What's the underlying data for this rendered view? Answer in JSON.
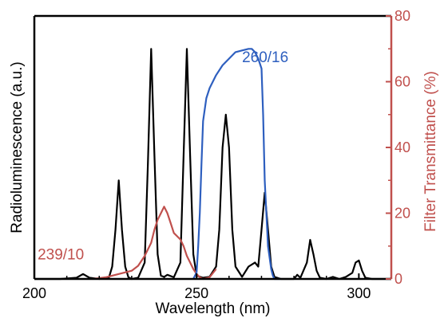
{
  "chart_data": {
    "type": "line",
    "title": "",
    "xlabel": "Wavelength (nm)",
    "ylabel": "Radioluminescence (a.u.)",
    "y2label": "Filter Transmittance (%)",
    "xlim": [
      200,
      310
    ],
    "ylim": [
      0,
      80
    ],
    "x_ticks": [
      200,
      250,
      300
    ],
    "y2_ticks": [
      0,
      20,
      40,
      60,
      80
    ],
    "grid": false,
    "legend": "none",
    "colors": {
      "luminescence": "#000000",
      "filter_239": "#c0504d",
      "filter_260": "#2e5fbf",
      "right_axis": "#c0504d"
    },
    "series": [
      {
        "axis": "left",
        "color": "#000000",
        "x": [
          200,
          208,
          213,
          215,
          217,
          220,
          223,
          224,
          225,
          226,
          227,
          228,
          229,
          230,
          232,
          234,
          235,
          236,
          237,
          238,
          239,
          240,
          241,
          243,
          245,
          246,
          247,
          248,
          249,
          250,
          252,
          254,
          256,
          257,
          258,
          259,
          260,
          261,
          262,
          264,
          266,
          268,
          269,
          270,
          271,
          272,
          273,
          274,
          276,
          278,
          280,
          281,
          282,
          284,
          285,
          286,
          287,
          288,
          290,
          292,
          294,
          296,
          298,
          299,
          300,
          301,
          302,
          304,
          306,
          308,
          310
        ],
        "y": [
          0,
          0,
          0.3,
          1.2,
          0.3,
          0,
          0.4,
          3,
          12,
          24,
          12,
          3,
          0.4,
          0,
          0.3,
          4,
          28,
          56,
          30,
          6,
          0.8,
          0.5,
          1,
          0.4,
          4,
          30,
          56,
          30,
          6,
          0.8,
          0.3,
          0.5,
          3,
          12,
          32,
          40,
          32,
          12,
          3,
          0.5,
          3,
          4,
          3,
          12,
          21,
          12,
          3,
          0.5,
          0,
          0,
          0,
          1,
          0.3,
          4,
          9.5,
          6,
          2,
          0.3,
          0,
          0.5,
          0,
          0.5,
          1.5,
          4,
          4.5,
          2,
          0.3,
          0,
          0,
          0,
          0
        ]
      },
      {
        "axis": "right",
        "name": "239/10",
        "color": "#c0504d",
        "x": [
          218,
          222,
          226,
          230,
          232,
          234,
          236,
          237,
          238,
          239,
          240,
          241,
          242,
          243,
          244,
          245,
          246,
          247,
          248,
          249,
          250,
          251,
          252,
          254,
          256
        ],
        "y": [
          0,
          0.5,
          1.5,
          2.5,
          4,
          7,
          11,
          15,
          18,
          20,
          22,
          20,
          17,
          14,
          13,
          12,
          10,
          7,
          5,
          3,
          1.5,
          0.5,
          0,
          0.5,
          3
        ]
      },
      {
        "axis": "right",
        "name": "260/16",
        "color": "#2e5fbf",
        "x": [
          249,
          250,
          250.5,
          251,
          251.5,
          252,
          253,
          254,
          256,
          258,
          260,
          262,
          264,
          266,
          267,
          268,
          269,
          270,
          270.5,
          271,
          272,
          273,
          273.5,
          274,
          276
        ],
        "y": [
          0,
          2,
          10,
          20,
          35,
          48,
          55,
          58,
          62,
          65,
          67,
          69,
          69.5,
          70,
          70,
          69,
          67,
          64,
          50,
          30,
          10,
          3,
          1,
          0,
          0
        ]
      }
    ],
    "annotations": [
      {
        "text": "260/16",
        "color": "#2e5fbf",
        "x": 264,
        "y2": 66
      },
      {
        "text": "239/10",
        "color": "#c0504d",
        "x": 201,
        "y2": 6
      }
    ]
  }
}
